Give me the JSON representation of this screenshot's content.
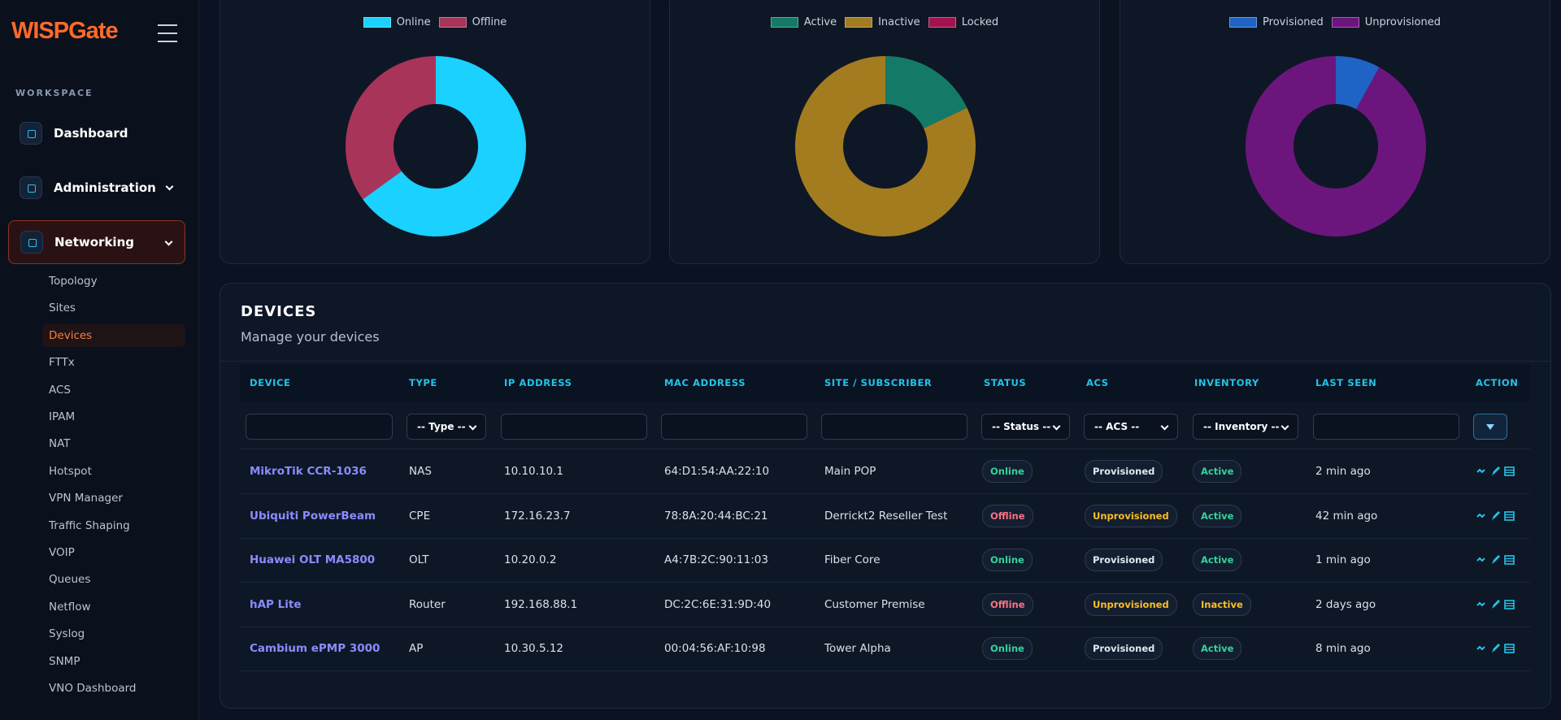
{
  "sidebar": {
    "logo": "WISPGate",
    "section": "WORKSPACE",
    "items": [
      "Dashboard",
      "Administration",
      "Networking"
    ],
    "subitems": [
      "Topology",
      "Sites",
      "Devices",
      "FTTx",
      "ACS",
      "IPAM",
      "NAT",
      "Hotspot",
      "VPN Manager",
      "Traffic Shaping",
      "VOIP",
      "Queues",
      "Netflow",
      "Syslog",
      "SNMP",
      "VNO Dashboard"
    ]
  },
  "chart_data": [
    {
      "type": "pie",
      "categories": [
        "Online",
        "Offline"
      ],
      "values": [
        65,
        35
      ],
      "colors": [
        "#1ad1ff",
        "#a8345a"
      ]
    },
    {
      "type": "pie",
      "categories": [
        "Active",
        "Inactive",
        "Locked"
      ],
      "values": [
        18,
        82,
        0
      ],
      "colors": [
        "#137a68",
        "#a27c1e",
        "#a3124f"
      ]
    },
    {
      "type": "pie",
      "categories": [
        "Provisioned",
        "Unprovisioned"
      ],
      "values": [
        8,
        92
      ],
      "colors": [
        "#1f63c4",
        "#6c167d"
      ]
    }
  ],
  "devices": {
    "title": "DEVICES",
    "subtitle": "Manage your devices",
    "columns": [
      "DEVICE",
      "TYPE",
      "IP ADDRESS",
      "MAC ADDRESS",
      "SITE / SUBSCRIBER",
      "STATUS",
      "ACS",
      "INVENTORY",
      "LAST SEEN",
      "ACTION"
    ],
    "filters": [
      null,
      "-- Type --",
      null,
      null,
      null,
      "-- Status --",
      "-- ACS --",
      "-- Inventory --",
      null,
      null
    ],
    "rows": [
      [
        "MikroTik CCR-1036",
        "NAS",
        "10.10.10.1",
        "64:D1:54:AA:22:10",
        "Main POP",
        {
          "text": "Online",
          "color": "#34d399"
        },
        {
          "text": "Provisioned",
          "color": "#e2e8f0"
        },
        {
          "text": "Active",
          "color": "#34d399"
        },
        "2 min ago"
      ],
      [
        "Ubiquiti PowerBeam",
        "CPE",
        "172.16.23.7",
        "78:8A:20:44:BC:21",
        "Derrickt2 Reseller Test",
        {
          "text": "Offline",
          "color": "#fb7185"
        },
        {
          "text": "Unprovisioned",
          "color": "#fbbf24"
        },
        {
          "text": "Active",
          "color": "#34d399"
        },
        "42 min ago"
      ],
      [
        "Huawei OLT MA5800",
        "OLT",
        "10.20.0.2",
        "A4:7B:2C:90:11:03",
        "Fiber Core",
        {
          "text": "Online",
          "color": "#34d399"
        },
        {
          "text": "Provisioned",
          "color": "#e2e8f0"
        },
        {
          "text": "Active",
          "color": "#34d399"
        },
        "1 min ago"
      ],
      [
        "hAP Lite",
        "Router",
        "192.168.88.1",
        "DC:2C:6E:31:9D:40",
        "Customer Premise",
        {
          "text": "Offline",
          "color": "#fb7185"
        },
        {
          "text": "Unprovisioned",
          "color": "#fbbf24"
        },
        {
          "text": "Inactive",
          "color": "#fbbf24"
        },
        "2 days ago"
      ],
      [
        "Cambium ePMP 3000",
        "AP",
        "10.30.5.12",
        "00:04:56:AF:10:98",
        "Tower Alpha",
        {
          "text": "Online",
          "color": "#34d399"
        },
        {
          "text": "Provisioned",
          "color": "#e2e8f0"
        },
        {
          "text": "Active",
          "color": "#34d399"
        },
        "8 min ago"
      ]
    ]
  }
}
